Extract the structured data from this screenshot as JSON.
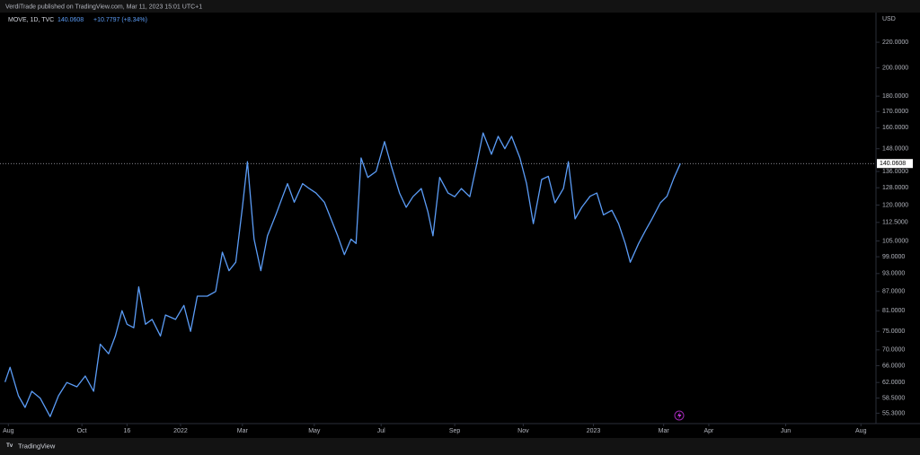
{
  "header": {
    "published": "VerdiTrade published on TradingView.com, Mar 11, 2023 15:01 UTC+1"
  },
  "footer": {
    "brand": "TradingView"
  },
  "chart_data": {
    "type": "line",
    "symbol": "MOVE, 1D, TVC",
    "change": "+10.7797 (+8.34%)",
    "y_axis_label": "USD",
    "log_scale": true,
    "grid": false,
    "xlim": [
      0,
      524
    ],
    "ylim": [
      53.2,
      245.7
    ],
    "xticks": [
      {
        "value": 5,
        "label": "Aug"
      },
      {
        "value": 49,
        "label": "Oct"
      },
      {
        "value": 76,
        "label": "16"
      },
      {
        "value": 108,
        "label": "2022"
      },
      {
        "value": 145,
        "label": "Mar"
      },
      {
        "value": 188,
        "label": "May"
      },
      {
        "value": 228,
        "label": "Jul"
      },
      {
        "value": 272,
        "label": "Sep"
      },
      {
        "value": 313,
        "label": "Nov"
      },
      {
        "value": 355,
        "label": "2023"
      },
      {
        "value": 397,
        "label": "Mar"
      },
      {
        "value": 424,
        "label": "Apr"
      },
      {
        "value": 470,
        "label": "Jun"
      },
      {
        "value": 515,
        "label": "Aug"
      }
    ],
    "yticks": [
      {
        "value": 220,
        "label": "220.0000"
      },
      {
        "value": 200,
        "label": "200.0000"
      },
      {
        "value": 180,
        "label": "180.0000"
      },
      {
        "value": 170,
        "label": "170.0000"
      },
      {
        "value": 160,
        "label": "160.0000"
      },
      {
        "value": 148,
        "label": "148.0000"
      },
      {
        "value": 136,
        "label": "136.0000"
      },
      {
        "value": 128,
        "label": "128.0000"
      },
      {
        "value": 120,
        "label": "120.0000"
      },
      {
        "value": 112.5,
        "label": "112.5000"
      },
      {
        "value": 105,
        "label": "105.0000"
      },
      {
        "value": 99,
        "label": "99.0000"
      },
      {
        "value": 93,
        "label": "93.0000"
      },
      {
        "value": 87,
        "label": "87.0000"
      },
      {
        "value": 81,
        "label": "81.0000"
      },
      {
        "value": 75,
        "label": "75.0000"
      },
      {
        "value": 70,
        "label": "70.0000"
      },
      {
        "value": 66,
        "label": "66.0000"
      },
      {
        "value": 62,
        "label": "62.0000"
      },
      {
        "value": 58.5,
        "label": "58.5000"
      },
      {
        "value": 55.3,
        "label": "55.3000"
      }
    ],
    "series": [
      {
        "name": "MOVE",
        "color": "#5b9cf6",
        "x": [
          3,
          6,
          11,
          15,
          19,
          24,
          30,
          35,
          40,
          46,
          51,
          56,
          60,
          65,
          69,
          73,
          76,
          80,
          83,
          87,
          91,
          96,
          99,
          105,
          110,
          114,
          118,
          124,
          129,
          133,
          137,
          141,
          145,
          148,
          152,
          156,
          160,
          165,
          169,
          172,
          176,
          181,
          185,
          189,
          194,
          198,
          202,
          206,
          210,
          213,
          216,
          220,
          225,
          230,
          234,
          239,
          243,
          247,
          252,
          256,
          259,
          263,
          268,
          272,
          276,
          281,
          285,
          289,
          294,
          298,
          302,
          306,
          311,
          315,
          319,
          324,
          328,
          332,
          337,
          340,
          344,
          348,
          353,
          357,
          361,
          366,
          370,
          374,
          377,
          382,
          386,
          390,
          395,
          399,
          403,
          407
        ],
        "values": [
          62.1,
          65.6,
          59,
          56.5,
          60,
          58.5,
          54.6,
          59,
          62,
          61,
          63.5,
          60,
          71.5,
          69,
          73.7,
          81,
          77,
          76,
          88.5,
          77,
          78.4,
          73.7,
          79.7,
          78.4,
          82.6,
          75,
          85.5,
          85.5,
          87,
          100.7,
          94,
          97,
          119,
          141,
          105.7,
          94,
          107,
          115.7,
          123.8,
          130,
          121.3,
          130,
          127.6,
          125.5,
          121.3,
          114,
          107,
          99.8,
          105.7,
          104,
          143,
          133,
          136,
          152,
          139,
          125.5,
          119,
          123.8,
          127.6,
          117,
          107,
          133,
          125.5,
          123.8,
          127.6,
          123.8,
          139,
          157,
          145,
          155,
          148,
          155,
          143,
          130,
          112,
          132,
          133.6,
          121,
          127.6,
          141,
          114,
          119,
          124,
          125.5,
          115.7,
          117.7,
          112,
          104,
          97,
          104,
          109,
          114,
          121,
          124,
          132.5,
          140.0608
        ]
      }
    ]
  }
}
